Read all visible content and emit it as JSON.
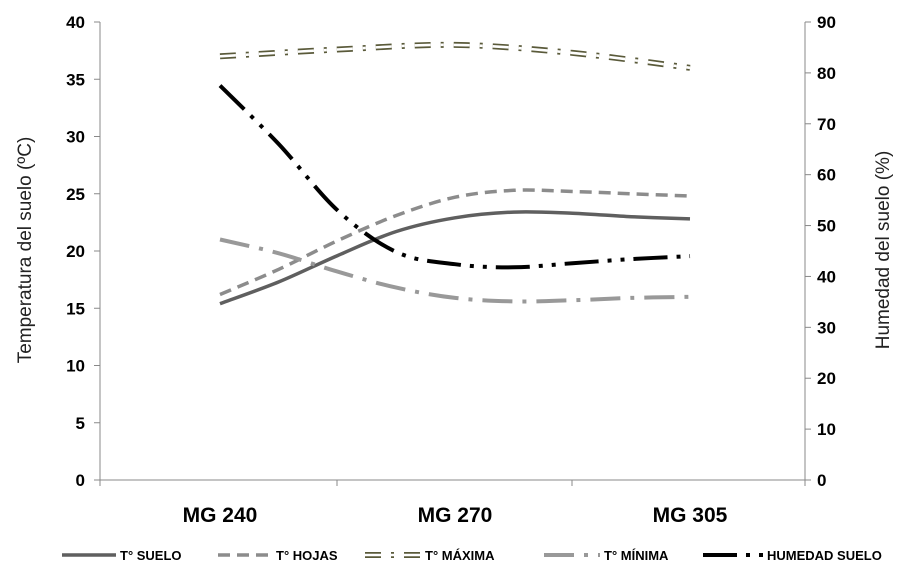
{
  "chart_data": {
    "type": "line",
    "categories": [
      "MG 240",
      "MG 270",
      "MG 305"
    ],
    "y_left": {
      "label": "Temperatura del suelo (ºC)",
      "ylim": [
        0,
        40
      ],
      "ticks": [
        0,
        5,
        10,
        15,
        20,
        25,
        30,
        35,
        40
      ]
    },
    "y_right": {
      "label": "Humedad del suelo (%)",
      "ylim": [
        0,
        90
      ],
      "ticks": [
        0,
        10,
        20,
        30,
        40,
        50,
        60,
        70,
        80,
        90
      ]
    },
    "grid": false,
    "legend_position": "bottom",
    "series": [
      {
        "name": "T° SUELO",
        "axis": "left",
        "color": "#5f5f5f",
        "style": "solid",
        "x": [
          0,
          0.25,
          0.5,
          0.75,
          1.0,
          1.25,
          1.5,
          1.75,
          2.0
        ],
        "values": [
          15.4,
          17.3,
          19.6,
          21.7,
          22.9,
          23.4,
          23.3,
          23.0,
          22.8
        ]
      },
      {
        "name": "T° HOJAS",
        "axis": "left",
        "color": "#8c8c8c",
        "style": "dashed",
        "x": [
          0,
          0.25,
          0.5,
          0.75,
          1.0,
          1.25,
          1.5,
          1.75,
          2.0
        ],
        "values": [
          16.2,
          18.4,
          20.9,
          23.1,
          24.7,
          25.3,
          25.2,
          25.0,
          24.8
        ]
      },
      {
        "name": "T° MÁXIMA",
        "axis": "left",
        "color": "#5a5a3a",
        "style": "double-dash-dot",
        "x": [
          0,
          0.5,
          1.0,
          1.5,
          2.0
        ],
        "values": [
          37.0,
          37.6,
          38.0,
          37.3,
          36.0
        ]
      },
      {
        "name": "T° MÍNIMA",
        "axis": "left",
        "color": "#999999",
        "style": "long-dash-dot",
        "x": [
          0,
          0.25,
          0.5,
          0.75,
          1.0,
          1.25,
          1.5,
          1.75,
          2.0
        ],
        "values": [
          21.0,
          19.8,
          18.2,
          16.8,
          15.9,
          15.6,
          15.7,
          15.9,
          16.0
        ]
      },
      {
        "name": "HUMEDAD SUELO",
        "axis": "right",
        "color": "#000000",
        "style": "long-dash-dot-dot",
        "x": [
          0,
          0.25,
          0.5,
          0.75,
          1.0,
          1.25,
          1.5,
          1.75,
          2.0
        ],
        "values": [
          77.5,
          66.0,
          53.0,
          44.8,
          42.4,
          41.8,
          42.6,
          43.4,
          44.0
        ]
      }
    ]
  }
}
